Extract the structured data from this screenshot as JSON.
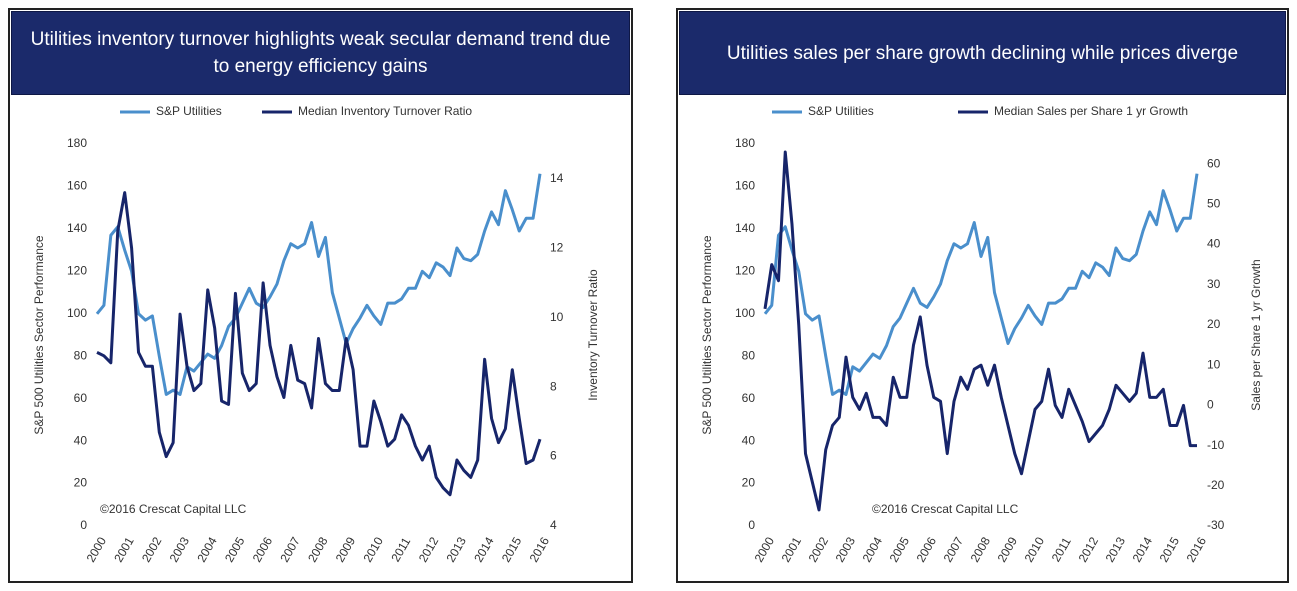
{
  "chart_data": [
    {
      "type": "line",
      "title": "Utilities inventory turnover highlights weak secular demand trend due to energy efficiency gains",
      "ylabel": "S&P 500 Utilities Sector Performance",
      "y2label": "Inventory Turnover Ratio",
      "annotation": "©2016 Crescat Capital LLC",
      "legend": "top",
      "grid": false,
      "xlim": [
        2000,
        2016
      ],
      "xticks": [
        2000,
        2001,
        2002,
        2003,
        2004,
        2005,
        2006,
        2007,
        2008,
        2009,
        2010,
        2011,
        2012,
        2013,
        2014,
        2015,
        2016
      ],
      "ylim": [
        0,
        180
      ],
      "yticks": [
        0,
        20,
        40,
        60,
        80,
        100,
        120,
        140,
        160,
        180
      ],
      "y2lim": [
        4,
        15
      ],
      "y2ticks": [
        4,
        6,
        8,
        10,
        12,
        14
      ],
      "x": [
        2000,
        2000.25,
        2000.5,
        2000.75,
        2001,
        2001.25,
        2001.5,
        2001.75,
        2002,
        2002.25,
        2002.5,
        2002.75,
        2003,
        2003.25,
        2003.5,
        2003.75,
        2004,
        2004.25,
        2004.5,
        2004.75,
        2005,
        2005.25,
        2005.5,
        2005.75,
        2006,
        2006.25,
        2006.5,
        2006.75,
        2007,
        2007.25,
        2007.5,
        2007.75,
        2008,
        2008.25,
        2008.5,
        2008.75,
        2009,
        2009.25,
        2009.5,
        2009.75,
        2010,
        2010.25,
        2010.5,
        2010.75,
        2011,
        2011.25,
        2011.5,
        2011.75,
        2012,
        2012.25,
        2012.5,
        2012.75,
        2013,
        2013.25,
        2013.5,
        2013.75,
        2014,
        2014.25,
        2014.5,
        2014.75,
        2015,
        2015.25,
        2015.5,
        2015.75,
        2016
      ],
      "series": [
        {
          "name": "S&P Utilities",
          "color": "#4a8fcc",
          "values": [
            100,
            104,
            137,
            141,
            130,
            120,
            100,
            97,
            99,
            80,
            62,
            64,
            62,
            75,
            73,
            77,
            81,
            79,
            85,
            94,
            98,
            105,
            112,
            105,
            103,
            108,
            114,
            125,
            133,
            131,
            133,
            143,
            127,
            136,
            110,
            98,
            86,
            93,
            98,
            104,
            99,
            95,
            105,
            105,
            107,
            112,
            112,
            120,
            117,
            124,
            122,
            118,
            131,
            126,
            125,
            128,
            139,
            148,
            142,
            158,
            149,
            139,
            145,
            145,
            166
          ]
        },
        {
          "name": "Median Inventory Turnover Ratio",
          "color": "#17256a",
          "axis": "y2",
          "values": [
            9.0,
            8.9,
            8.7,
            12.5,
            13.6,
            12.0,
            9.0,
            8.6,
            8.6,
            6.7,
            6.0,
            6.4,
            10.1,
            8.6,
            7.9,
            8.1,
            10.8,
            9.7,
            7.6,
            7.5,
            10.7,
            8.4,
            7.9,
            8.1,
            11.0,
            9.2,
            8.3,
            7.7,
            9.2,
            8.2,
            8.1,
            7.4,
            9.4,
            8.1,
            7.9,
            7.9,
            9.4,
            8.5,
            6.3,
            6.3,
            7.6,
            7.0,
            6.3,
            6.5,
            7.2,
            6.9,
            6.3,
            5.9,
            6.3,
            5.4,
            5.1,
            4.9,
            5.9,
            5.6,
            5.4,
            5.9,
            8.8,
            7.1,
            6.4,
            6.8,
            8.5,
            7.1,
            5.8,
            5.9,
            6.5
          ]
        }
      ]
    },
    {
      "type": "line",
      "title": "Utilities sales per share growth declining while prices diverge",
      "ylabel": "S&P 500 Utilities Sector Performance",
      "y2label": "Sales per Share 1 yr Growth",
      "annotation": "©2016 Crescat Capital LLC",
      "legend": "top",
      "grid": false,
      "xlim": [
        2000,
        2016
      ],
      "xticks": [
        2000,
        2001,
        2002,
        2003,
        2004,
        2005,
        2006,
        2007,
        2008,
        2009,
        2010,
        2011,
        2012,
        2013,
        2014,
        2015,
        2016
      ],
      "ylim": [
        0,
        180
      ],
      "yticks": [
        0,
        20,
        40,
        60,
        80,
        100,
        120,
        140,
        160,
        180
      ],
      "y2lim": [
        -30,
        65
      ],
      "y2ticks": [
        -30,
        -20,
        -10,
        0,
        10,
        20,
        30,
        40,
        50,
        60
      ],
      "x": [
        2000,
        2000.25,
        2000.5,
        2000.75,
        2001,
        2001.25,
        2001.5,
        2001.75,
        2002,
        2002.25,
        2002.5,
        2002.75,
        2003,
        2003.25,
        2003.5,
        2003.75,
        2004,
        2004.25,
        2004.5,
        2004.75,
        2005,
        2005.25,
        2005.5,
        2005.75,
        2006,
        2006.25,
        2006.5,
        2006.75,
        2007,
        2007.25,
        2007.5,
        2007.75,
        2008,
        2008.25,
        2008.5,
        2008.75,
        2009,
        2009.25,
        2009.5,
        2009.75,
        2010,
        2010.25,
        2010.5,
        2010.75,
        2011,
        2011.25,
        2011.5,
        2011.75,
        2012,
        2012.25,
        2012.5,
        2012.75,
        2013,
        2013.25,
        2013.5,
        2013.75,
        2014,
        2014.25,
        2014.5,
        2014.75,
        2015,
        2015.25,
        2015.5,
        2015.75,
        2016
      ],
      "series": [
        {
          "name": "S&P Utilities",
          "color": "#4a8fcc",
          "values": [
            100,
            104,
            137,
            141,
            130,
            120,
            100,
            97,
            99,
            80,
            62,
            64,
            62,
            75,
            73,
            77,
            81,
            79,
            85,
            94,
            98,
            105,
            112,
            105,
            103,
            108,
            114,
            125,
            133,
            131,
            133,
            143,
            127,
            136,
            110,
            98,
            86,
            93,
            98,
            104,
            99,
            95,
            105,
            105,
            107,
            112,
            112,
            120,
            117,
            124,
            122,
            118,
            131,
            126,
            125,
            128,
            139,
            148,
            142,
            158,
            149,
            139,
            145,
            145,
            166
          ]
        },
        {
          "name": "Median Sales per Share 1 yr Growth",
          "color": "#17256a",
          "axis": "y2",
          "values": [
            24,
            35,
            31,
            63,
            45,
            20,
            -12,
            -19,
            -26,
            -11,
            -5,
            -3,
            12,
            2,
            -1,
            3,
            -3,
            -3,
            -5,
            7,
            2,
            2,
            15,
            22,
            10,
            2,
            1,
            -12,
            1,
            7,
            4,
            9,
            10,
            5,
            10,
            2,
            -5,
            -12,
            -17,
            -9,
            -1,
            1,
            9,
            0,
            -3,
            4,
            0,
            -4,
            -9,
            -7,
            -5,
            -1,
            5,
            3,
            1,
            3,
            13,
            2,
            2,
            4,
            -5,
            -5,
            0,
            -10,
            -10
          ]
        }
      ]
    }
  ]
}
